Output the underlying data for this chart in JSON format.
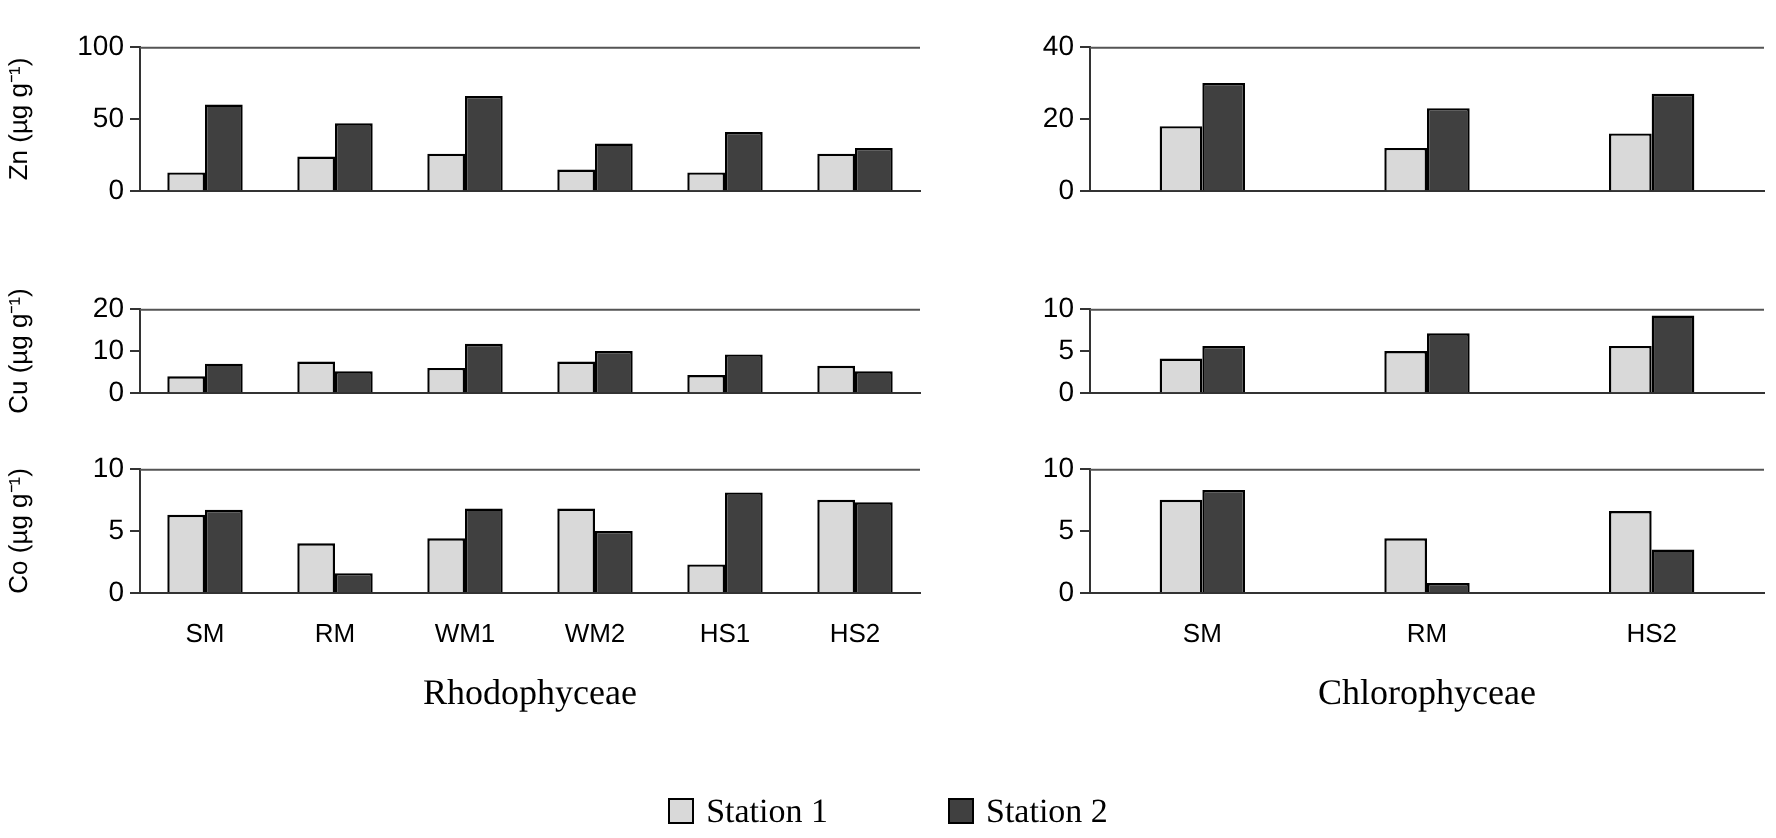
{
  "chart_data": [
    {
      "type": "bar",
      "ylabel": "Zn (µg g⁻¹)",
      "categories": [
        null,
        null,
        null,
        null,
        null,
        null
      ],
      "ylim": [
        0,
        100
      ],
      "yticks": [
        0,
        50,
        100
      ],
      "tick_labels": "y",
      "legend": "bottom",
      "series": [
        {
          "name": "Station 1",
          "color": "#d9d9d9",
          "values": [
            13,
            24,
            26,
            15,
            13,
            26
          ]
        },
        {
          "name": "Station 2",
          "color": "#404040",
          "values": [
            60,
            47,
            66,
            33,
            41,
            30
          ]
        }
      ]
    },
    {
      "type": "bar",
      "ylabel": "Cu (µg g⁻¹)",
      "categories": [
        null,
        null,
        null,
        null,
        null,
        null
      ],
      "ylim": [
        0,
        20
      ],
      "yticks": [
        0,
        10,
        20
      ],
      "tick_labels": "y",
      "series": [
        {
          "color": "#d9d9d9",
          "values": [
            4,
            7.5,
            6,
            7.5,
            4.3,
            6.5
          ]
        },
        {
          "color": "#404040",
          "values": [
            7,
            5.2,
            11.7,
            10,
            9.2,
            5.2
          ]
        }
      ]
    },
    {
      "type": "bar",
      "ylabel": "Co (µg g⁻¹)",
      "xlabel": "Rhodophyceae",
      "categories": [
        "SM",
        "RM",
        "WM1",
        "WM2",
        "HS1",
        "HS2"
      ],
      "ylim": [
        0,
        10
      ],
      "yticks": [
        0,
        5,
        10
      ],
      "series": [
        {
          "color": "#d9d9d9",
          "values": [
            6.3,
            4,
            4.4,
            6.8,
            2.3,
            7.5
          ]
        },
        {
          "color": "#404040",
          "values": [
            6.7,
            1.6,
            6.8,
            5,
            8.1,
            7.3
          ]
        }
      ]
    },
    {
      "type": "bar",
      "categories": [
        null,
        null,
        null
      ],
      "ylim": [
        0,
        40
      ],
      "yticks": [
        0,
        20,
        40
      ],
      "tick_labels": "y",
      "series": [
        {
          "color": "#d9d9d9",
          "values": [
            18,
            12,
            16
          ]
        },
        {
          "color": "#404040",
          "values": [
            30,
            23,
            27
          ]
        }
      ]
    },
    {
      "type": "bar",
      "categories": [
        null,
        null,
        null
      ],
      "ylim": [
        0,
        10
      ],
      "yticks": [
        0,
        5,
        10
      ],
      "tick_labels": "y",
      "series": [
        {
          "color": "#d9d9d9",
          "values": [
            4.1,
            5,
            5.6
          ]
        },
        {
          "color": "#404040",
          "values": [
            5.6,
            7.1,
            9.2
          ]
        }
      ]
    },
    {
      "type": "bar",
      "xlabel": "Chlorophyceae",
      "categories": [
        "SM",
        "RM",
        "HS2"
      ],
      "ylim": [
        0,
        10
      ],
      "yticks": [
        0,
        5,
        10
      ],
      "series": [
        {
          "color": "#d9d9d9",
          "values": [
            7.5,
            4.4,
            6.6
          ]
        },
        {
          "color": "#404040",
          "values": [
            8.3,
            0.8,
            3.5
          ]
        }
      ]
    }
  ]
}
